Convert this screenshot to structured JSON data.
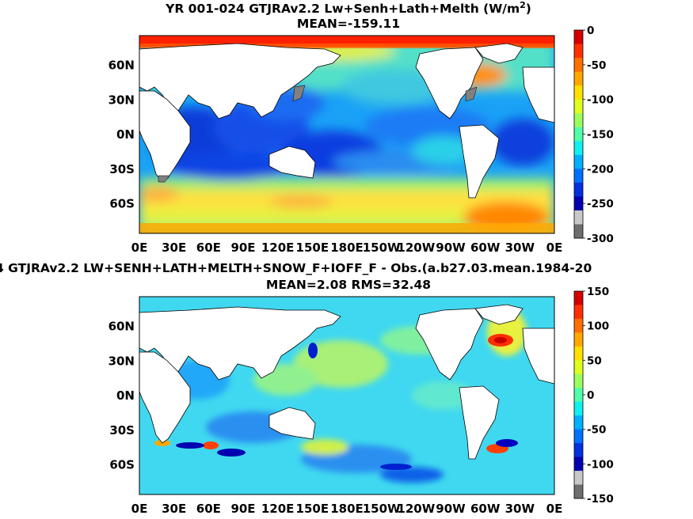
{
  "panel1": {
    "title_main": "YR 001-024 GTJRAv2.2 Lw+Senh+Lath+Melth (W/m",
    "title_sup": "2",
    "title_close": ")",
    "subtitle": "MEAN=-159.11"
  },
  "panel2": {
    "title": "4 GTJRAv2.2 LW+SENH+LATH+MELTH+SNOW_F+IOFF_F - Obs.(a.b27.03.mean.1984-20",
    "subtitle": "MEAN=2.08 RMS=32.48"
  },
  "chart_data": [
    {
      "type": "heatmap",
      "title": "YR 001-024 GTJRAv2.2 Lw+Senh+Lath+Melth (W/m2)",
      "subtitle": "MEAN=-159.11",
      "x_ticks": [
        "0E",
        "30E",
        "60E",
        "90E",
        "120E",
        "150E",
        "180E",
        "150W",
        "120W",
        "90W",
        "60W",
        "30W",
        "0E"
      ],
      "y_ticks": [
        "60N",
        "30N",
        "0N",
        "30S",
        "60S"
      ],
      "colorbar": {
        "min": -300,
        "max": 0,
        "ticks": [
          0,
          -50,
          -100,
          -150,
          -200,
          -250,
          -300
        ],
        "tick_labels": [
          "0",
          "-50",
          "-100",
          "-150",
          "-200",
          "-250",
          "-300"
        ],
        "colors_top_to_bottom": [
          "#d40000",
          "#ff3000",
          "#ff7000",
          "#ffa800",
          "#ffe000",
          "#e0ff20",
          "#9cff60",
          "#50ffa8",
          "#10f0f0",
          "#00b0ff",
          "#0070ff",
          "#0030e0",
          "#0000b0",
          "#c8c8c8",
          "#6e6e6e"
        ]
      },
      "mean": -159.11
    },
    {
      "type": "heatmap",
      "title": "4 GTJRAv2.2 LW+SENH+LATH+MELTH+SNOW_F+IOFF_F - Obs.(a.b27.03.mean.1984-20",
      "subtitle": "MEAN=2.08 RMS=32.48",
      "x_ticks": [
        "0E",
        "30E",
        "60E",
        "90E",
        "120E",
        "150E",
        "180E",
        "150W",
        "120W",
        "90W",
        "60W",
        "30W",
        "0E"
      ],
      "y_ticks": [
        "60N",
        "30N",
        "0N",
        "30S",
        "60S"
      ],
      "colorbar": {
        "min": -150,
        "max": 150,
        "ticks": [
          150,
          100,
          50,
          0,
          -50,
          -100,
          -150
        ],
        "tick_labels": [
          "150",
          "100",
          "50",
          "0",
          "-50",
          "-100",
          "-150"
        ],
        "colors_top_to_bottom": [
          "#d40000",
          "#ff3000",
          "#ff7000",
          "#ffa800",
          "#ffe000",
          "#e0ff20",
          "#9cff60",
          "#50ffa8",
          "#10f0f0",
          "#00b0ff",
          "#0070ff",
          "#0030e0",
          "#0000b0",
          "#c8c8c8",
          "#6e6e6e"
        ]
      },
      "mean": 2.08,
      "rms": 32.48
    }
  ]
}
